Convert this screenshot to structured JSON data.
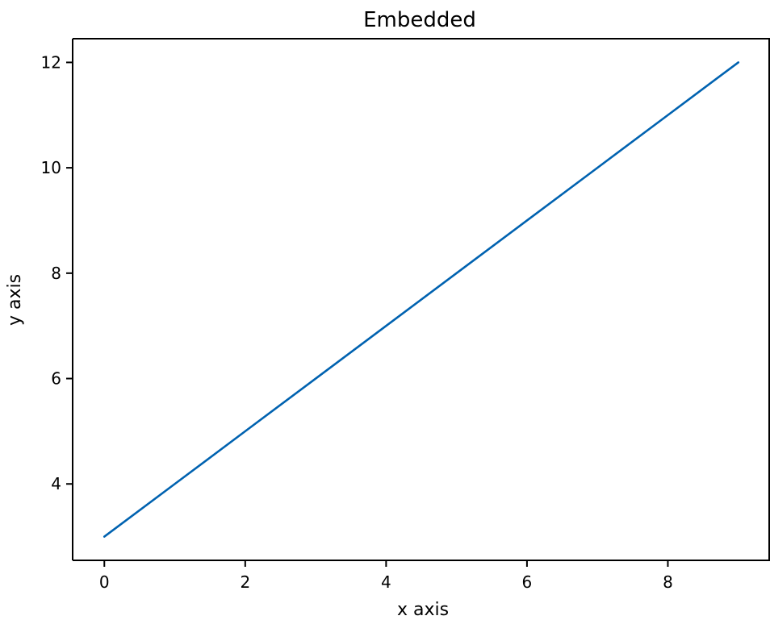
{
  "chart_data": {
    "type": "line",
    "title": "Embedded",
    "xlabel": "x axis",
    "ylabel": "y axis",
    "x": [
      0,
      1,
      2,
      3,
      4,
      5,
      6,
      7,
      8,
      9
    ],
    "series": [
      {
        "values": [
          3,
          4,
          5,
          6,
          7,
          8,
          9,
          10,
          11,
          12
        ],
        "color": "#0062b0"
      }
    ],
    "xlim": [
      -0.45,
      9.45
    ],
    "ylim": [
      2.55,
      12.45
    ],
    "xticks": [
      0,
      2,
      4,
      6,
      8
    ],
    "yticks": [
      4,
      6,
      8,
      10,
      12
    ],
    "xtick_labels": [
      "0",
      "2",
      "4",
      "6",
      "8"
    ],
    "ytick_labels": [
      "4",
      "6",
      "8",
      "10",
      "12"
    ],
    "grid": false,
    "legend": "none"
  }
}
